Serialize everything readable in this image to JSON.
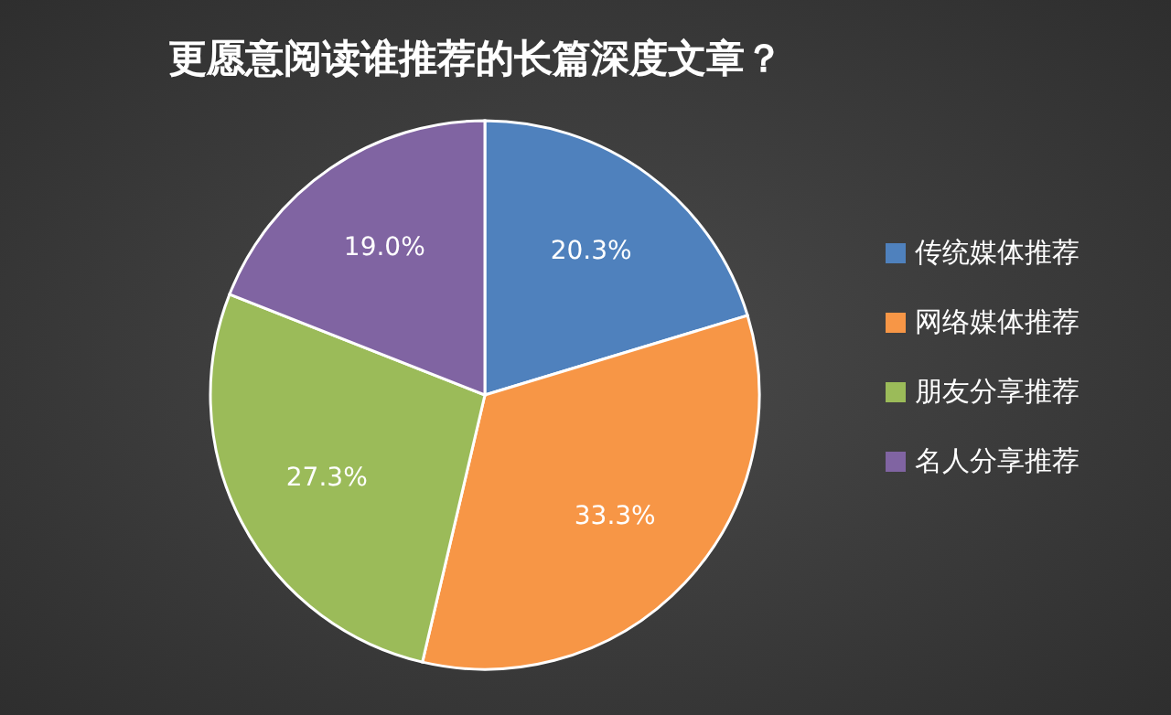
{
  "chart_data": {
    "type": "pie",
    "title": "更愿意阅读谁推荐的长篇深度文章？",
    "categories": [
      "传统媒体推荐",
      "网络媒体推荐",
      "朋友分享推荐",
      "名人分享推荐"
    ],
    "values": [
      20.3,
      33.3,
      27.3,
      19.0
    ],
    "value_labels": [
      "20.3%",
      "33.3%",
      "27.3%",
      "19.0%"
    ],
    "colors": [
      "#4f81bd",
      "#f79646",
      "#9bbb59",
      "#8064a2"
    ],
    "legend": "right"
  }
}
